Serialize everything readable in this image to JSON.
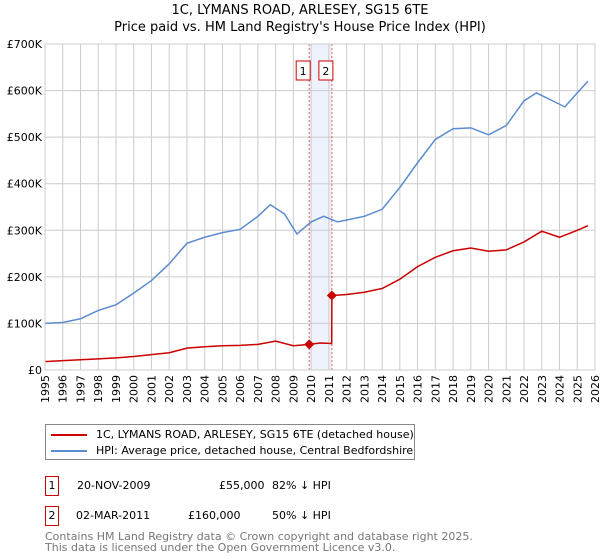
{
  "title": "1C, LYMANS ROAD, ARLESEY, SG15 6TE",
  "subtitle": "Price paid vs. HM Land Registry's House Price Index (HPI)",
  "chart_data": {
    "type": "line",
    "title": "1C, LYMANS ROAD, ARLESEY, SG15 6TE",
    "xlim": [
      1995,
      2026
    ],
    "ylim": [
      0,
      700000
    ],
    "x_ticks": [
      "1995",
      "1996",
      "1997",
      "1998",
      "1999",
      "2000",
      "2001",
      "2002",
      "2003",
      "2004",
      "2005",
      "2006",
      "2007",
      "2008",
      "2009",
      "2010",
      "2011",
      "2012",
      "2013",
      "2014",
      "2015",
      "2016",
      "2017",
      "2018",
      "2019",
      "2020",
      "2021",
      "2022",
      "2023",
      "2024",
      "2025",
      "2026"
    ],
    "y_ticks": [
      {
        "v": 0,
        "l": "£0"
      },
      {
        "v": 100000,
        "l": "£100K"
      },
      {
        "v": 200000,
        "l": "£200K"
      },
      {
        "v": 300000,
        "l": "£300K"
      },
      {
        "v": 400000,
        "l": "£400K"
      },
      {
        "v": 500000,
        "l": "£500K"
      },
      {
        "v": 600000,
        "l": "£600K"
      },
      {
        "v": 700000,
        "l": "£700K"
      }
    ],
    "grid": true,
    "series": [
      {
        "name": "1C, LYMANS ROAD, ARLESEY, SG15 6TE (detached house)",
        "color": "#cc0000",
        "x": [
          1995,
          1996,
          1997,
          1998,
          1999,
          2000,
          2001,
          2002,
          2003,
          2004,
          2005,
          2006,
          2007,
          2008,
          2009,
          2009.89,
          2010.5,
          2011.16,
          2011.17,
          2012,
          2013,
          2014,
          2015,
          2016,
          2017,
          2018,
          2019,
          2020,
          2021,
          2022,
          2023,
          2024,
          2025,
          2025.6
        ],
        "y": [
          18000,
          20000,
          22000,
          24000,
          26000,
          29000,
          33000,
          37000,
          47000,
          50000,
          52000,
          53000,
          55000,
          62000,
          52000,
          55000,
          58000,
          57000,
          160000,
          162000,
          167000,
          175000,
          195000,
          222000,
          242000,
          256000,
          262000,
          255000,
          258000,
          275000,
          298000,
          285000,
          300000,
          310000
        ]
      },
      {
        "name": "HPI: Average price, detached house, Central Bedfordshire",
        "color": "#5b8bd0",
        "x": [
          1995,
          1996,
          1997,
          1998,
          1999,
          2000,
          2001,
          2002,
          2003,
          2004,
          2005,
          2006,
          2007,
          2007.7,
          2008.5,
          2009.2,
          2010,
          2010.7,
          2011.5,
          2012,
          2013,
          2014,
          2015,
          2016,
          2017,
          2018,
          2019,
          2020,
          2021,
          2022,
          2022.7,
          2023.5,
          2024.3,
          2025,
          2025.6
        ],
        "y": [
          100000,
          102000,
          110000,
          128000,
          140000,
          165000,
          192000,
          228000,
          272000,
          285000,
          295000,
          302000,
          330000,
          355000,
          335000,
          292000,
          318000,
          330000,
          318000,
          322000,
          330000,
          345000,
          392000,
          445000,
          495000,
          518000,
          520000,
          505000,
          525000,
          578000,
          595000,
          580000,
          565000,
          595000,
          620000
        ]
      }
    ],
    "transactions": [
      {
        "id": "1",
        "x": 2009.89,
        "date": "20-NOV-2009",
        "price": 55000,
        "price_label": "£55,000",
        "hpi": "82% ↓ HPI"
      },
      {
        "id": "2",
        "x": 2011.17,
        "date": "02-MAR-2011",
        "price": 160000,
        "price_label": "£160,000",
        "hpi": "50% ↓ HPI"
      }
    ]
  },
  "legend": {
    "red": "1C, LYMANS ROAD, ARLESEY, SG15 6TE (detached house)",
    "blue": "HPI: Average price, detached house, Central Bedfordshire"
  },
  "footer": {
    "line1": "Contains HM Land Registry data © Crown copyright and database right 2025.",
    "line2": "This data is licensed under the Open Government Licence v3.0."
  }
}
